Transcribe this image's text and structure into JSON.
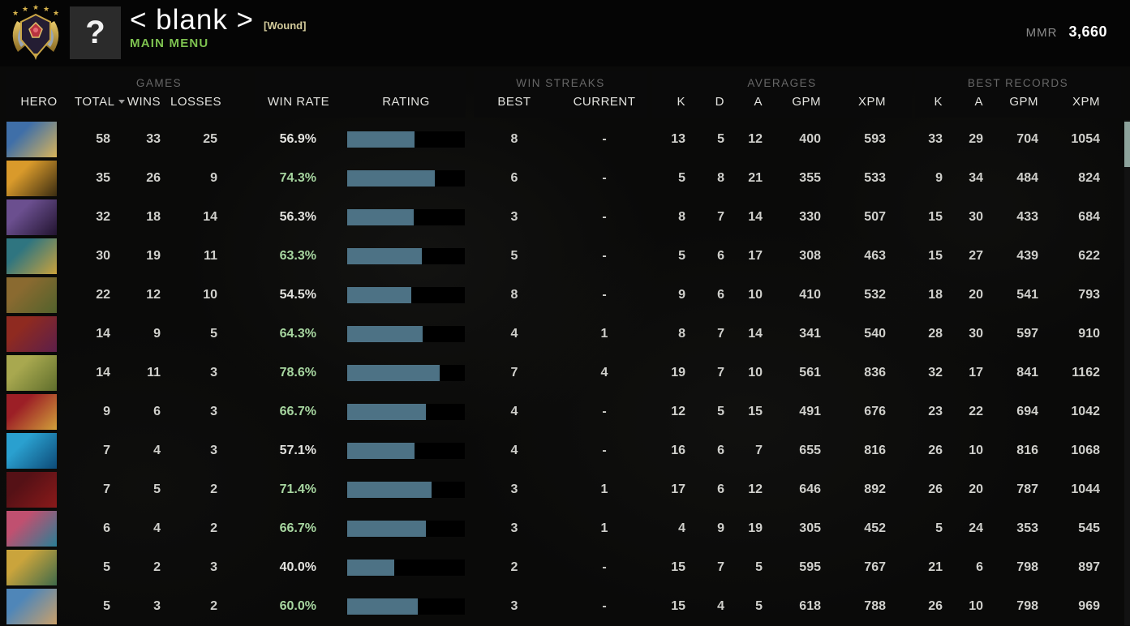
{
  "header": {
    "player_name": "< blank >",
    "player_tag": "[Wound]",
    "nav_label": "MAIN MENU",
    "avatar_glyph": "?",
    "mmr_label": "MMR",
    "mmr_value": "3,660"
  },
  "colors": {
    "accent_green": "#7ec250",
    "winrate_green": "#a7d6a0",
    "bar_fill": "#4d7285",
    "bar_track": "#000000",
    "tag_gold": "#d3cb9b",
    "scroll_thumb": "#8da39c"
  },
  "table": {
    "group_labels": {
      "games": "GAMES",
      "win_streaks": "WIN STREAKS",
      "averages": "AVERAGES",
      "best_records": "BEST RECORDS"
    },
    "columns": {
      "hero": "HERO",
      "total": "TOTAL",
      "wins": "WINS",
      "losses": "LOSSES",
      "win_rate": "WIN RATE",
      "rating": "RATING",
      "best": "BEST",
      "current": "CURRENT",
      "k": "K",
      "d": "D",
      "a": "A",
      "gpm": "GPM",
      "xpm": "XPM",
      "rec_k": "K",
      "rec_a": "A",
      "rec_gpm": "GPM",
      "rec_xpm": "XPM"
    },
    "rows": [
      {
        "total": "58",
        "wins": "33",
        "losses": "25",
        "win_rate": "56.9%",
        "win_rate_pct": 56.9,
        "win_rate_green": false,
        "best": "8",
        "current": "-",
        "k": "13",
        "d": "5",
        "a": "12",
        "gpm": "400",
        "xpm": "593",
        "rec_k": "33",
        "rec_a": "29",
        "rec_gpm": "704",
        "rec_xpm": "1054",
        "portrait": [
          "#3f6fa8",
          "#d9b45a"
        ]
      },
      {
        "total": "35",
        "wins": "26",
        "losses": "9",
        "win_rate": "74.3%",
        "win_rate_pct": 74.3,
        "win_rate_green": true,
        "best": "6",
        "current": "-",
        "k": "5",
        "d": "8",
        "a": "21",
        "gpm": "355",
        "xpm": "533",
        "rec_k": "9",
        "rec_a": "34",
        "rec_gpm": "484",
        "rec_xpm": "824",
        "portrait": [
          "#d99a2b",
          "#3a2c12"
        ]
      },
      {
        "total": "32",
        "wins": "18",
        "losses": "14",
        "win_rate": "56.3%",
        "win_rate_pct": 56.3,
        "win_rate_green": false,
        "best": "3",
        "current": "-",
        "k": "8",
        "d": "7",
        "a": "14",
        "gpm": "330",
        "xpm": "507",
        "rec_k": "15",
        "rec_a": "30",
        "rec_gpm": "433",
        "rec_xpm": "684",
        "portrait": [
          "#6b4f8f",
          "#221430"
        ]
      },
      {
        "total": "30",
        "wins": "19",
        "losses": "11",
        "win_rate": "63.3%",
        "win_rate_pct": 63.3,
        "win_rate_green": true,
        "best": "5",
        "current": "-",
        "k": "5",
        "d": "6",
        "a": "17",
        "gpm": "308",
        "xpm": "463",
        "rec_k": "15",
        "rec_a": "27",
        "rec_gpm": "439",
        "rec_xpm": "622",
        "portrait": [
          "#2f7580",
          "#caa23c"
        ]
      },
      {
        "total": "22",
        "wins": "12",
        "losses": "10",
        "win_rate": "54.5%",
        "win_rate_pct": 54.5,
        "win_rate_green": false,
        "best": "8",
        "current": "-",
        "k": "9",
        "d": "6",
        "a": "10",
        "gpm": "410",
        "xpm": "532",
        "rec_k": "18",
        "rec_a": "20",
        "rec_gpm": "541",
        "rec_xpm": "793",
        "portrait": [
          "#8a6a30",
          "#52622c"
        ]
      },
      {
        "total": "14",
        "wins": "9",
        "losses": "5",
        "win_rate": "64.3%",
        "win_rate_pct": 64.3,
        "win_rate_green": true,
        "best": "4",
        "current": "1",
        "k": "8",
        "d": "7",
        "a": "14",
        "gpm": "341",
        "xpm": "540",
        "rec_k": "28",
        "rec_a": "30",
        "rec_gpm": "597",
        "rec_xpm": "910",
        "portrait": [
          "#8f2a20",
          "#5c1f4a"
        ]
      },
      {
        "total": "14",
        "wins": "11",
        "losses": "3",
        "win_rate": "78.6%",
        "win_rate_pct": 78.6,
        "win_rate_green": true,
        "best": "7",
        "current": "4",
        "k": "19",
        "d": "7",
        "a": "10",
        "gpm": "561",
        "xpm": "836",
        "rec_k": "32",
        "rec_a": "17",
        "rec_gpm": "841",
        "rec_xpm": "1162",
        "portrait": [
          "#a8a84f",
          "#5f6e2c"
        ]
      },
      {
        "total": "9",
        "wins": "6",
        "losses": "3",
        "win_rate": "66.7%",
        "win_rate_pct": 66.7,
        "win_rate_green": true,
        "best": "4",
        "current": "-",
        "k": "12",
        "d": "5",
        "a": "15",
        "gpm": "491",
        "xpm": "676",
        "rec_k": "23",
        "rec_a": "22",
        "rec_gpm": "694",
        "rec_xpm": "1042",
        "portrait": [
          "#9c1f26",
          "#d1a03a"
        ]
      },
      {
        "total": "7",
        "wins": "4",
        "losses": "3",
        "win_rate": "57.1%",
        "win_rate_pct": 57.1,
        "win_rate_green": false,
        "best": "4",
        "current": "-",
        "k": "16",
        "d": "6",
        "a": "7",
        "gpm": "655",
        "xpm": "816",
        "rec_k": "26",
        "rec_a": "10",
        "rec_gpm": "816",
        "rec_xpm": "1068",
        "portrait": [
          "#2aa0cf",
          "#0d4a77"
        ]
      },
      {
        "total": "7",
        "wins": "5",
        "losses": "2",
        "win_rate": "71.4%",
        "win_rate_pct": 71.4,
        "win_rate_green": true,
        "best": "3",
        "current": "1",
        "k": "17",
        "d": "6",
        "a": "12",
        "gpm": "646",
        "xpm": "892",
        "rec_k": "26",
        "rec_a": "20",
        "rec_gpm": "787",
        "rec_xpm": "1044",
        "portrait": [
          "#551116",
          "#8a1a1a"
        ]
      },
      {
        "total": "6",
        "wins": "4",
        "losses": "2",
        "win_rate": "66.7%",
        "win_rate_pct": 66.7,
        "win_rate_green": true,
        "best": "3",
        "current": "1",
        "k": "4",
        "d": "9",
        "a": "19",
        "gpm": "305",
        "xpm": "452",
        "rec_k": "5",
        "rec_a": "24",
        "rec_gpm": "353",
        "rec_xpm": "545",
        "portrait": [
          "#c05070",
          "#2a7f96"
        ]
      },
      {
        "total": "5",
        "wins": "2",
        "losses": "3",
        "win_rate": "40.0%",
        "win_rate_pct": 40.0,
        "win_rate_green": false,
        "best": "2",
        "current": "-",
        "k": "15",
        "d": "7",
        "a": "5",
        "gpm": "595",
        "xpm": "767",
        "rec_k": "21",
        "rec_a": "6",
        "rec_gpm": "798",
        "rec_xpm": "897",
        "portrait": [
          "#caa43c",
          "#3f6a4a"
        ]
      },
      {
        "total": "5",
        "wins": "3",
        "losses": "2",
        "win_rate": "60.0%",
        "win_rate_pct": 60.0,
        "win_rate_green": true,
        "best": "3",
        "current": "-",
        "k": "15",
        "d": "4",
        "a": "5",
        "gpm": "618",
        "xpm": "788",
        "rec_k": "26",
        "rec_a": "10",
        "rec_gpm": "798",
        "rec_xpm": "969",
        "portrait": [
          "#4f86b8",
          "#caa06a"
        ]
      }
    ]
  }
}
